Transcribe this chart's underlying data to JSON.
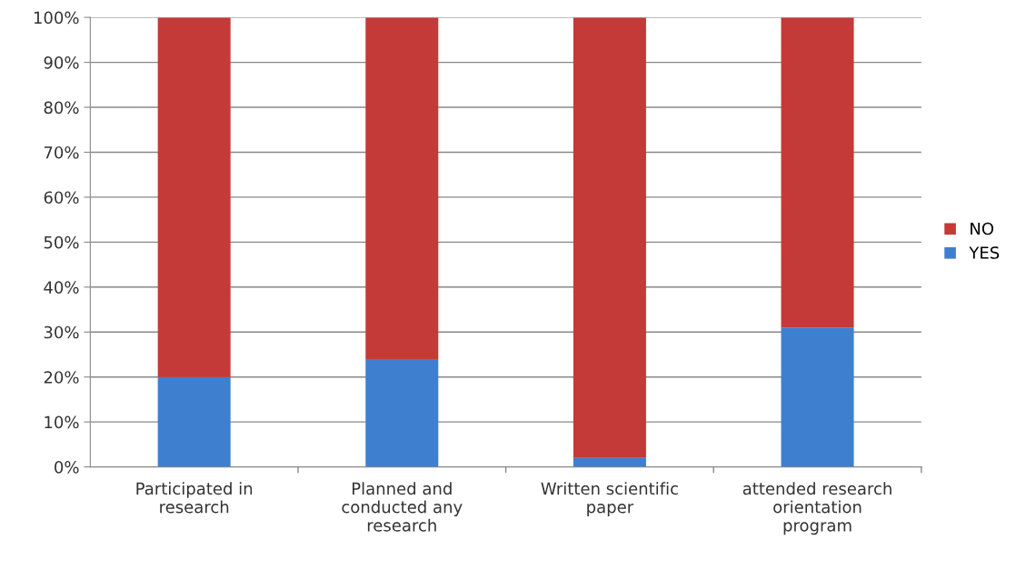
{
  "chart_data": {
    "type": "bar",
    "stacked": true,
    "categories": [
      "Participated in\nresearch",
      "Planned and\nconducted any\nresearch",
      "Written scientific\npaper",
      "attended research\norientation\nprogram"
    ],
    "series": [
      {
        "name": "YES",
        "color": "#3f7fcf",
        "values": [
          20,
          24,
          2,
          31
        ]
      },
      {
        "name": "NO",
        "color": "#c43a38",
        "values": [
          80,
          76,
          98,
          69
        ]
      }
    ],
    "ylim": [
      0,
      100
    ],
    "yticks": [
      {
        "value": 0,
        "label": "0%"
      },
      {
        "value": 10,
        "label": "10%"
      },
      {
        "value": 20,
        "label": "20%"
      },
      {
        "value": 30,
        "label": "30%"
      },
      {
        "value": 40,
        "label": "40%"
      },
      {
        "value": 50,
        "label": "50%"
      },
      {
        "value": 60,
        "label": "60%"
      },
      {
        "value": 70,
        "label": "70%"
      },
      {
        "value": 80,
        "label": "80%"
      },
      {
        "value": 90,
        "label": "90%"
      },
      {
        "value": 100,
        "label": "100%"
      }
    ],
    "grid": "y",
    "legend": "right"
  }
}
